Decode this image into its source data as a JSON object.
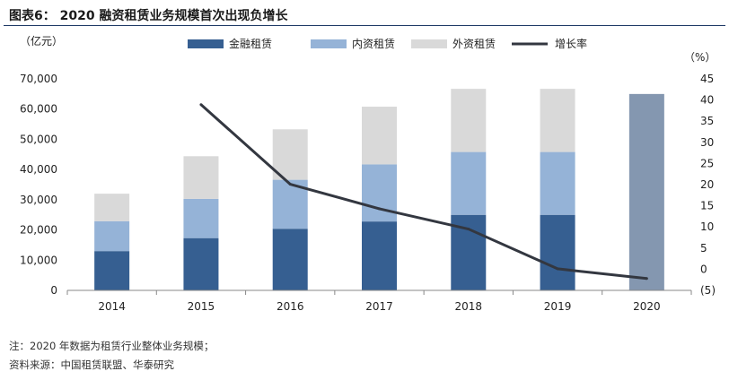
{
  "header": {
    "title": "图表6：  2020 融资租赁业务规模首次出现负增长"
  },
  "notes": {
    "note": "注：2020 年数据为租赁行业整体业务规模；",
    "source": "资料来源：中国租赁联盟、华泰研究"
  },
  "colors": {
    "financial_leasing": "#365f91",
    "domestic_leasing": "#95b3d7",
    "foreign_leasing": "#d9d9d9",
    "total_2020": "#8497b0",
    "growth_line": "#333740"
  },
  "chart_data": {
    "type": "bar",
    "stacked": true,
    "categories": [
      "2014",
      "2015",
      "2016",
      "2017",
      "2018",
      "2019",
      "2020"
    ],
    "series": [
      {
        "name": "金融租赁",
        "values": [
          13000,
          17300,
          20400,
          22800,
          25000,
          25000,
          null
        ]
      },
      {
        "name": "内资租赁",
        "values": [
          9900,
          13000,
          16200,
          18900,
          20800,
          20800,
          null
        ]
      },
      {
        "name": "外资租赁",
        "values": [
          9100,
          14100,
          16700,
          19100,
          20900,
          20900,
          null
        ]
      }
    ],
    "total_2020": {
      "category": "2020",
      "value": 65000
    },
    "line_series": {
      "name": "增长率",
      "axis": "right",
      "values": [
        null,
        38.9,
        20.1,
        14.3,
        9.5,
        0.1,
        -2.2
      ]
    },
    "yleft": {
      "unit": "（亿元）",
      "ylim": [
        0,
        70000
      ],
      "ticks": [
        "0",
        "10,000",
        "20,000",
        "30,000",
        "40,000",
        "50,000",
        "60,000",
        "70,000"
      ]
    },
    "yright": {
      "unit": "（%）",
      "ylim": [
        -5,
        45
      ],
      "ticks": [
        "(5)",
        "0",
        "5",
        "10",
        "15",
        "20",
        "25",
        "30",
        "35",
        "40",
        "45"
      ]
    },
    "legend": {
      "placement": "top",
      "entries": [
        "金融租赁",
        "内资租赁",
        "外资租赁",
        "增长率"
      ]
    },
    "grid": false
  }
}
